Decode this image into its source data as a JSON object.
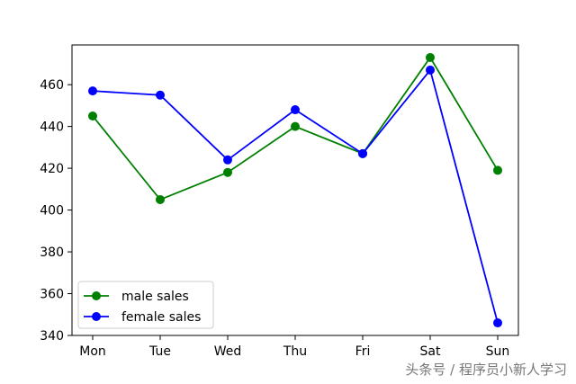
{
  "chart_data": {
    "type": "line",
    "categories": [
      "Mon",
      "Tue",
      "Wed",
      "Thu",
      "Fri",
      "Sat",
      "Sun"
    ],
    "series": [
      {
        "name": "male sales",
        "color": "#008000",
        "values": [
          445,
          405,
          418,
          440,
          427,
          473,
          419
        ]
      },
      {
        "name": "female sales",
        "color": "#0000ff",
        "values": [
          457,
          455,
          424,
          448,
          427,
          467,
          346
        ]
      }
    ],
    "yticks": [
      340,
      360,
      380,
      400,
      420,
      440,
      460
    ],
    "ylim": [
      340,
      479
    ],
    "grid": false,
    "legend_position": "lower-left",
    "title": "",
    "xlabel": "",
    "ylabel": ""
  },
  "watermark": "头条号 / 程序员小新人学习"
}
